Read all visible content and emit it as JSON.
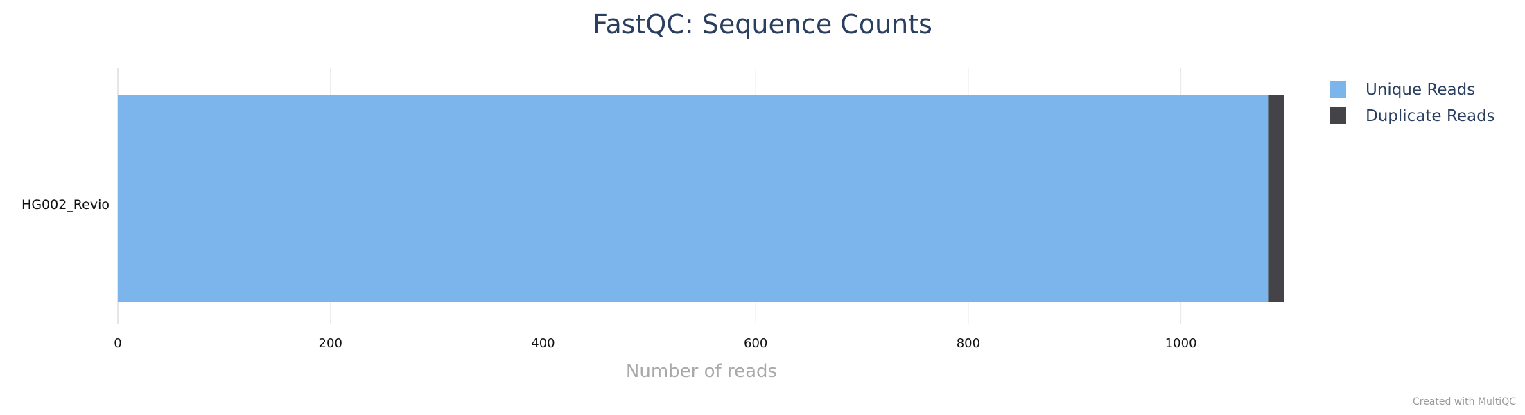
{
  "chart_data": {
    "type": "bar",
    "orientation": "horizontal",
    "stacked": true,
    "title": "FastQC: Sequence Counts",
    "xlabel": "Number of reads",
    "ylabel": "",
    "categories": [
      "HG002_Revio"
    ],
    "series": [
      {
        "name": "Unique Reads",
        "color": "#7cb5ec",
        "values": [
          1082
        ]
      },
      {
        "name": "Duplicate Reads",
        "color": "#434348",
        "values": [
          15
        ]
      }
    ],
    "xlim": [
      0,
      1100
    ],
    "xticks": [
      0,
      200,
      400,
      600,
      800,
      1000
    ],
    "grid": true,
    "legend_position": "top-right",
    "credit": "Created with MultiQC"
  }
}
